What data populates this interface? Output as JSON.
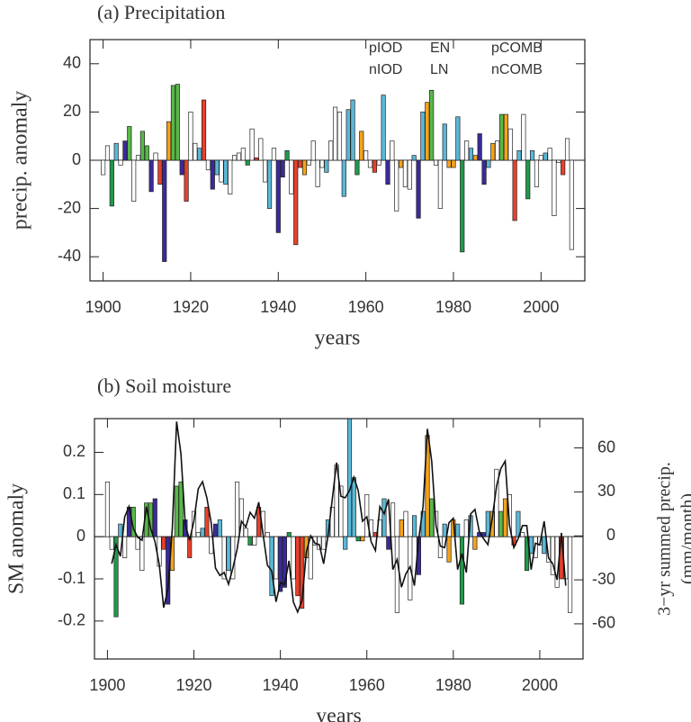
{
  "chart_data": [
    {
      "type": "bar",
      "title": "(a) Precipitation",
      "xlabel": "years",
      "ylabel": "precip. anomaly",
      "xlim": [
        1897,
        2010
      ],
      "xticks": [
        1900,
        1920,
        1940,
        1960,
        1980,
        2000
      ],
      "ylim": [
        -50,
        50
      ],
      "yticks": [
        -40,
        -20,
        0,
        20,
        40
      ],
      "series": [
        {
          "name": "pIOD",
          "color": "#e8402a",
          "x": [
            1913,
            1919,
            1923,
            1935,
            1944,
            1945,
            1962,
            1994,
            2005
          ],
          "values": [
            -10,
            -17,
            25,
            1,
            -35,
            -3,
            -5,
            -25,
            -6
          ]
        },
        {
          "name": "nIOD",
          "color": "#f5a31a",
          "x": [
            1915,
            1946,
            1959,
            1968,
            1974,
            1979,
            1980,
            1985,
            1989,
            1992
          ],
          "values": [
            16,
            -6,
            12,
            -3,
            24,
            -3,
            -3,
            2,
            7,
            19
          ]
        },
        {
          "name": "EN",
          "color": "#3a2a9a",
          "x": [
            1905,
            1911,
            1914,
            1918,
            1925,
            1940,
            1941,
            1965,
            1972,
            1986,
            1987
          ],
          "values": [
            8,
            -13,
            -42,
            -6,
            -12,
            -30,
            -7,
            -10,
            -24,
            11,
            -10
          ]
        },
        {
          "name": "LN",
          "color": "#5ab8d8",
          "x": [
            1903,
            1922,
            1926,
            1928,
            1938,
            1951,
            1955,
            1956,
            1957,
            1964,
            1971,
            1973,
            1978,
            1981,
            1984,
            1988,
            1995,
            1998,
            2001
          ],
          "values": [
            7,
            5,
            -6,
            -10,
            -20,
            -5,
            -15,
            21,
            25,
            27,
            2,
            20,
            15,
            18,
            5,
            -3,
            4,
            4,
            3
          ]
        },
        {
          "name": "pCOMB",
          "color": "#1f9a4a",
          "x": [
            1902,
            1933,
            1942,
            1958,
            1982,
            1997
          ],
          "values": [
            -19,
            -2,
            4,
            -6,
            -38,
            -16
          ]
        },
        {
          "name": "nCOMB",
          "color": "#58b848",
          "x": [
            1906,
            1909,
            1910,
            1916,
            1917,
            1975,
            1991
          ],
          "values": [
            14,
            12,
            6,
            31,
            31.5,
            29,
            19
          ]
        },
        {
          "color": "#ffffff",
          "x": [
            1900,
            1901,
            1904,
            1907,
            1908,
            1912,
            1920,
            1921,
            1924,
            1927,
            1929,
            1930,
            1931,
            1932,
            1934,
            1936,
            1937,
            1939,
            1943,
            1947,
            1948,
            1949,
            1950,
            1952,
            1953,
            1954,
            1960,
            1961,
            1963,
            1966,
            1967,
            1969,
            1970,
            1976,
            1977,
            1983,
            1990,
            1993,
            1996,
            1999,
            2000,
            2002,
            2003,
            2004,
            2006,
            2007
          ],
          "values": [
            -6,
            6,
            -2,
            -17,
            2,
            3,
            20,
            7,
            -4,
            -9,
            -14,
            2,
            3,
            5,
            13,
            9,
            -9,
            5,
            -14,
            -2,
            8,
            -11,
            -3,
            8,
            22,
            20,
            4,
            -3,
            -2,
            8,
            -21,
            -11,
            -12,
            -2,
            -20,
            8,
            8,
            13,
            19,
            -11,
            2,
            5,
            -23,
            -1,
            9,
            -37
          ]
        }
      ]
    },
    {
      "type": "bar",
      "title": "(b) Soil moisture",
      "xlabel": "years",
      "ylabel": "SM anomaly",
      "y2label": [
        "3−yr summed precip.",
        "(mm/month)"
      ],
      "xlim": [
        1897,
        2010
      ],
      "xticks": [
        1900,
        1920,
        1940,
        1960,
        1980,
        2000
      ],
      "ylim": [
        -0.29,
        0.28
      ],
      "yticks": [
        -0.2,
        -0.1,
        0,
        0.1,
        0.2
      ],
      "y2lim": [
        -84,
        80
      ],
      "y2ticks": [
        -60,
        -30,
        0,
        30,
        60
      ],
      "series": [
        {
          "color": "#e8402a",
          "x": [
            1913,
            1919,
            1923,
            1935,
            1944,
            1945,
            1962,
            1994,
            2005
          ],
          "values": [
            -0.03,
            -0.05,
            0.07,
            0.07,
            -0.14,
            -0.17,
            0.01,
            -0.02,
            -0.1
          ]
        },
        {
          "color": "#f5a31a",
          "x": [
            1915,
            1946,
            1959,
            1968,
            1974,
            1979,
            1980,
            1985,
            1989,
            1992
          ],
          "values": [
            -0.08,
            -0.05,
            -0.01,
            0.04,
            0.24,
            -0.06,
            0.04,
            -0.03,
            0.06,
            0.09
          ]
        },
        {
          "color": "#3a2a9a",
          "x": [
            1905,
            1911,
            1914,
            1918,
            1925,
            1940,
            1941,
            1965,
            1972,
            1986,
            1987
          ],
          "values": [
            0.07,
            0.09,
            -0.16,
            0.04,
            0.03,
            -0.13,
            -0.12,
            -0.03,
            -0.09,
            0.01,
            0.01
          ]
        },
        {
          "color": "#5ab8d8",
          "x": [
            1903,
            1922,
            1926,
            1928,
            1938,
            1951,
            1955,
            1956,
            1957,
            1964,
            1971,
            1973,
            1978,
            1981,
            1984,
            1988,
            1995,
            1998,
            2001
          ],
          "values": [
            0.03,
            0.02,
            0.04,
            -0.08,
            -0.14,
            0.04,
            -0.03,
            0.28,
            0.14,
            0.09,
            0.05,
            0.06,
            0.03,
            0.03,
            0.05,
            0.06,
            0.06,
            -0.04,
            -0.04
          ]
        },
        {
          "color": "#1f9a4a",
          "x": [
            1902,
            1933,
            1942,
            1958,
            1982,
            1997
          ],
          "values": [
            -0.19,
            -0.02,
            0.01,
            -0.01,
            -0.16,
            -0.08
          ]
        },
        {
          "color": "#58b848",
          "x": [
            1906,
            1909,
            1910,
            1916,
            1917,
            1975,
            1991
          ],
          "values": [
            0.07,
            0.08,
            0.08,
            0.12,
            0.13,
            0.09,
            0.06
          ]
        },
        {
          "color": "#ffffff",
          "x": [
            1900,
            1901,
            1904,
            1907,
            1908,
            1912,
            1920,
            1921,
            1924,
            1927,
            1929,
            1930,
            1931,
            1932,
            1934,
            1936,
            1937,
            1939,
            1943,
            1947,
            1948,
            1949,
            1950,
            1952,
            1953,
            1954,
            1960,
            1961,
            1963,
            1966,
            1967,
            1969,
            1970,
            1976,
            1977,
            1983,
            1990,
            1993,
            1996,
            1999,
            2000,
            2002,
            2003,
            2004,
            2006,
            2007
          ],
          "values": [
            0.13,
            -0.03,
            -0.05,
            -0.03,
            -0.08,
            -0.07,
            0.06,
            0.01,
            -0.04,
            -0.1,
            -0.1,
            0.13,
            0.09,
            0.02,
            -0.02,
            0.06,
            0.01,
            -0.1,
            -0.1,
            -0.1,
            -0.02,
            -0.03,
            -0.03,
            0.07,
            0.17,
            0.12,
            0.1,
            0.04,
            0.04,
            0.08,
            -0.18,
            0.06,
            -0.15,
            0.06,
            -0.05,
            0.04,
            0.16,
            0.1,
            0.01,
            -0.05,
            -0.02,
            -0.06,
            -0.09,
            -0.12,
            -0.1,
            -0.18
          ]
        },
        {
          "type": "line",
          "axis": "y2",
          "color": "#111111",
          "x": [
            1901,
            1902,
            1903,
            1904,
            1905,
            1906,
            1907,
            1908,
            1909,
            1910,
            1911,
            1912,
            1913,
            1914,
            1915,
            1916,
            1917,
            1918,
            1919,
            1920,
            1921,
            1922,
            1923,
            1924,
            1925,
            1926,
            1927,
            1928,
            1929,
            1930,
            1931,
            1932,
            1933,
            1934,
            1935,
            1936,
            1937,
            1938,
            1939,
            1940,
            1941,
            1942,
            1943,
            1944,
            1945,
            1946,
            1947,
            1948,
            1949,
            1950,
            1951,
            1952,
            1953,
            1954,
            1955,
            1956,
            1957,
            1958,
            1959,
            1960,
            1961,
            1962,
            1963,
            1964,
            1965,
            1966,
            1967,
            1968,
            1969,
            1970,
            1971,
            1972,
            1973,
            1974,
            1975,
            1976,
            1977,
            1978,
            1979,
            1980,
            1981,
            1982,
            1983,
            1984,
            1985,
            1986,
            1987,
            1988,
            1989,
            1990,
            1991,
            1992,
            1993,
            1994,
            1995,
            1996,
            1997,
            1998,
            1999,
            2000,
            2001,
            2002,
            2003,
            2004,
            2005,
            2006
          ],
          "values": [
            -19,
            -6,
            -14,
            13,
            20,
            5,
            -1,
            -3,
            20,
            5,
            -4,
            -20,
            -49,
            -36,
            5,
            78,
            56,
            8,
            -3,
            10,
            32,
            37,
            26,
            9,
            -22,
            -27,
            -25,
            -33,
            -22,
            -9,
            10,
            6,
            16,
            12,
            23,
            1,
            -20,
            -24,
            -45,
            -32,
            -33,
            -17,
            -45,
            -52,
            -44,
            -11,
            0,
            -5,
            -6,
            -19,
            0,
            25,
            50,
            27,
            26,
            31,
            40,
            31,
            10,
            13,
            -4,
            -10,
            20,
            15,
            25,
            -23,
            -16,
            -35,
            -26,
            -21,
            -34,
            -2,
            20,
            73,
            51,
            7,
            -7,
            -8,
            9,
            12,
            -23,
            -12,
            -25,
            15,
            18,
            3,
            -2,
            -6,
            12,
            34,
            46,
            51,
            7,
            -8,
            -2,
            7,
            7,
            -23,
            -5,
            -6,
            10,
            -15,
            -19,
            -30,
            2,
            -34
          ]
        }
      ]
    }
  ]
}
